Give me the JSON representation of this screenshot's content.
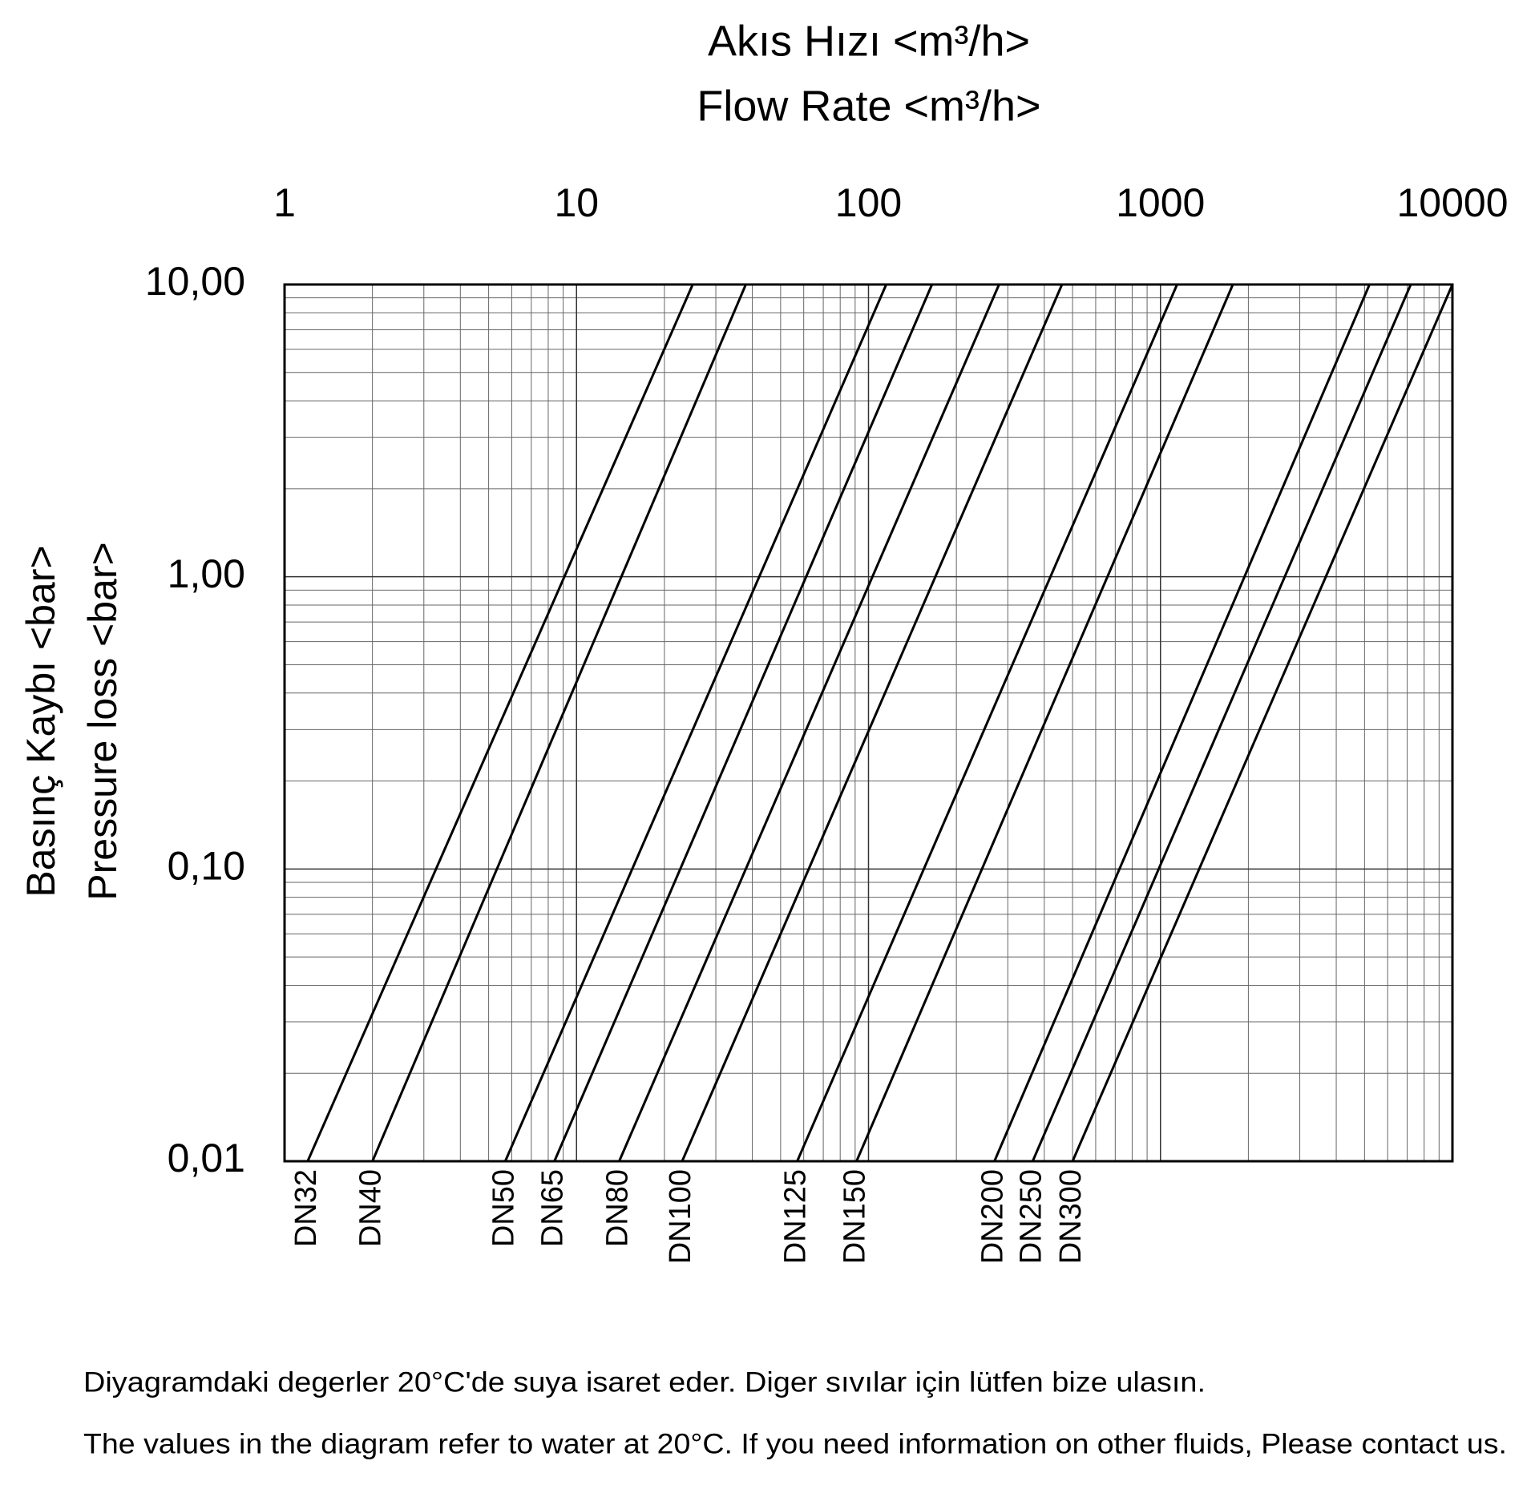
{
  "chart_data": {
    "type": "line",
    "x_label": [
      "Akıs Hızı <m³/h>",
      "Flow Rate <m³/h>"
    ],
    "y_label": [
      "Basınç Kaybı <bar>",
      "Pressure loss <bar>"
    ],
    "xlog": true,
    "ylog": true,
    "grid": true,
    "color": "#000000",
    "xlim": [
      1,
      10000
    ],
    "xticks": [
      1,
      10,
      100,
      1000,
      10000
    ],
    "ylim": [
      0.01,
      10
    ],
    "yticks": [
      {
        "value": 10,
        "label": "10,00"
      },
      {
        "value": 1,
        "label": "1,00"
      },
      {
        "value": 0.1,
        "label": "0,10"
      },
      {
        "value": 0.01,
        "label": "0,01"
      }
    ],
    "series": [
      {
        "name": "DN32",
        "x": [
          1.2,
          25
        ],
        "values": [
          0.01,
          10
        ]
      },
      {
        "name": "DN40",
        "x": [
          2,
          38
        ],
        "values": [
          0.01,
          10
        ]
      },
      {
        "name": "DN50",
        "x": [
          5.7,
          115
        ],
        "values": [
          0.01,
          10
        ]
      },
      {
        "name": "DN65",
        "x": [
          8.4,
          165
        ],
        "values": [
          0.01,
          10
        ]
      },
      {
        "name": "DN80",
        "x": [
          14,
          280
        ],
        "values": [
          0.01,
          10
        ]
      },
      {
        "name": "DN100",
        "x": [
          23,
          460
        ],
        "values": [
          0.01,
          10
        ]
      },
      {
        "name": "DN125",
        "x": [
          57,
          1140
        ],
        "values": [
          0.01,
          10
        ]
      },
      {
        "name": "DN150",
        "x": [
          91,
          1770
        ],
        "values": [
          0.01,
          10
        ]
      },
      {
        "name": "DN200",
        "x": [
          270,
          5200
        ],
        "values": [
          0.01,
          10
        ]
      },
      {
        "name": "DN250",
        "x": [
          365,
          7200
        ],
        "values": [
          0.01,
          10
        ]
      },
      {
        "name": "DN300",
        "x": [
          500,
          10000
        ],
        "values": [
          0.01,
          10
        ]
      }
    ],
    "notes": [
      "Diyagramdaki degerler 20°C'de suya isaret eder. Diger sıvılar için lütfen bize ulasın.",
      "The values in the diagram refer to water at 20°C. If you need information on other fluids, Please contact us."
    ]
  }
}
